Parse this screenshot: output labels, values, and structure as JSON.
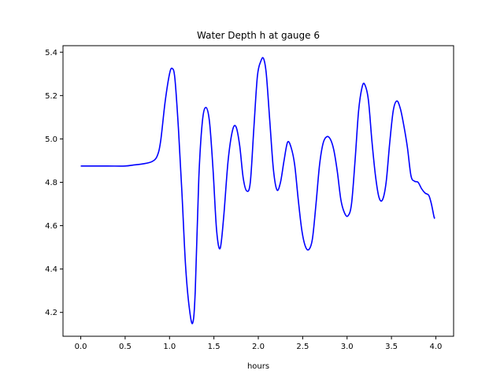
{
  "chart_data": {
    "type": "line",
    "title": "Water Depth h at gauge 6",
    "xlabel": "hours",
    "ylabel": "",
    "xlim": [
      -0.2,
      4.2
    ],
    "ylim": [
      4.09,
      5.43
    ],
    "x_ticks": [
      0.0,
      0.5,
      1.0,
      1.5,
      2.0,
      2.5,
      3.0,
      3.5,
      4.0
    ],
    "x_tick_labels": [
      "0.0",
      "0.5",
      "1.0",
      "1.5",
      "2.0",
      "2.5",
      "3.0",
      "3.5",
      "4.0"
    ],
    "y_ticks": [
      4.2,
      4.4,
      4.6,
      4.8,
      5.0,
      5.2,
      5.4
    ],
    "y_tick_labels": [
      "4.2",
      "4.4",
      "4.6",
      "4.8",
      "5.0",
      "5.2",
      "5.4"
    ],
    "grid": false,
    "legend": "none",
    "series": [
      {
        "color": "#0000ff",
        "points": [
          [
            0.0,
            4.875
          ],
          [
            0.3,
            4.875
          ],
          [
            0.5,
            4.875
          ],
          [
            0.6,
            4.88
          ],
          [
            0.7,
            4.885
          ],
          [
            0.8,
            4.895
          ],
          [
            0.86,
            4.92
          ],
          [
            0.9,
            4.99
          ],
          [
            0.95,
            5.17
          ],
          [
            1.0,
            5.3
          ],
          [
            1.03,
            5.325
          ],
          [
            1.06,
            5.28
          ],
          [
            1.1,
            5.05
          ],
          [
            1.14,
            4.75
          ],
          [
            1.18,
            4.42
          ],
          [
            1.22,
            4.23
          ],
          [
            1.26,
            4.15
          ],
          [
            1.29,
            4.3
          ],
          [
            1.33,
            4.82
          ],
          [
            1.37,
            5.08
          ],
          [
            1.41,
            5.145
          ],
          [
            1.45,
            5.08
          ],
          [
            1.49,
            4.86
          ],
          [
            1.53,
            4.58
          ],
          [
            1.57,
            4.495
          ],
          [
            1.61,
            4.64
          ],
          [
            1.66,
            4.9
          ],
          [
            1.71,
            5.04
          ],
          [
            1.75,
            5.055
          ],
          [
            1.79,
            4.97
          ],
          [
            1.83,
            4.82
          ],
          [
            1.87,
            4.76
          ],
          [
            1.91,
            4.8
          ],
          [
            1.95,
            5.05
          ],
          [
            1.99,
            5.29
          ],
          [
            2.03,
            5.36
          ],
          [
            2.06,
            5.37
          ],
          [
            2.09,
            5.3
          ],
          [
            2.13,
            5.08
          ],
          [
            2.17,
            4.86
          ],
          [
            2.21,
            4.765
          ],
          [
            2.25,
            4.8
          ],
          [
            2.29,
            4.9
          ],
          [
            2.33,
            4.985
          ],
          [
            2.37,
            4.96
          ],
          [
            2.41,
            4.88
          ],
          [
            2.45,
            4.72
          ],
          [
            2.49,
            4.58
          ],
          [
            2.53,
            4.505
          ],
          [
            2.57,
            4.49
          ],
          [
            2.61,
            4.54
          ],
          [
            2.65,
            4.7
          ],
          [
            2.69,
            4.88
          ],
          [
            2.73,
            4.98
          ],
          [
            2.77,
            5.01
          ],
          [
            2.81,
            5.0
          ],
          [
            2.85,
            4.95
          ],
          [
            2.89,
            4.85
          ],
          [
            2.93,
            4.72
          ],
          [
            2.97,
            4.66
          ],
          [
            3.01,
            4.645
          ],
          [
            3.05,
            4.7
          ],
          [
            3.09,
            4.9
          ],
          [
            3.13,
            5.13
          ],
          [
            3.17,
            5.24
          ],
          [
            3.2,
            5.25
          ],
          [
            3.24,
            5.18
          ],
          [
            3.28,
            4.99
          ],
          [
            3.32,
            4.83
          ],
          [
            3.36,
            4.73
          ],
          [
            3.4,
            4.72
          ],
          [
            3.44,
            4.8
          ],
          [
            3.48,
            4.98
          ],
          [
            3.52,
            5.13
          ],
          [
            3.56,
            5.175
          ],
          [
            3.6,
            5.14
          ],
          [
            3.64,
            5.06
          ],
          [
            3.68,
            4.96
          ],
          [
            3.72,
            4.83
          ],
          [
            3.76,
            4.805
          ],
          [
            3.8,
            4.8
          ],
          [
            3.84,
            4.77
          ],
          [
            3.88,
            4.75
          ],
          [
            3.92,
            4.74
          ],
          [
            3.95,
            4.7
          ],
          [
            3.98,
            4.64
          ],
          [
            3.99,
            4.635
          ]
        ]
      }
    ]
  }
}
